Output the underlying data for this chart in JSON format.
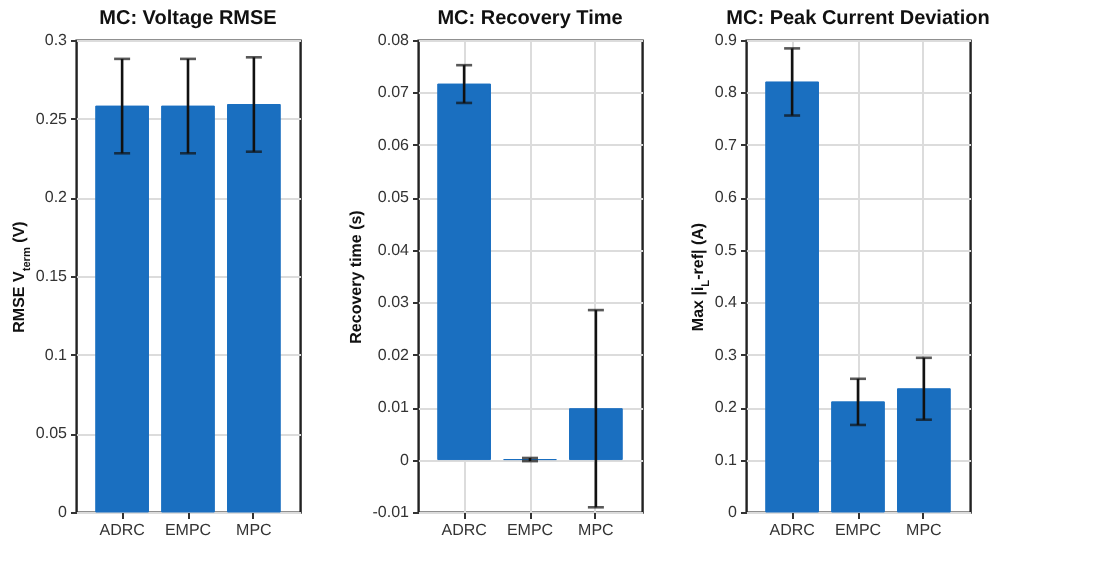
{
  "chart_data": [
    {
      "type": "bar",
      "title": "MC: Voltage RMSE",
      "ylabel": "RMSE  V$_{term}$ (V)",
      "categories": [
        "ADRC",
        "EMPC",
        "MPC"
      ],
      "values": [
        0.258,
        0.258,
        0.259
      ],
      "errors": [
        0.03,
        0.03,
        0.03
      ],
      "color": "#1a6fc0",
      "ylim": [
        0,
        0.3
      ],
      "yticks": [
        0,
        0.05,
        0.1,
        0.15,
        0.2,
        0.25,
        0.3
      ],
      "grid": "y"
    },
    {
      "type": "bar",
      "title": "MC: Recovery Time",
      "ylabel": "Recovery time (s)",
      "categories": [
        "ADRC",
        "EMPC",
        "MPC"
      ],
      "values": [
        0.0716,
        0,
        0.0097
      ],
      "errors": [
        0.0036,
        0.0003,
        0.0188
      ],
      "color": "#1a6fc0",
      "ylim": [
        -0.01,
        0.08
      ],
      "yticks": [
        -0.01,
        0,
        0.01,
        0.02,
        0.03,
        0.04,
        0.05,
        0.06,
        0.07,
        0.08
      ],
      "grid": true
    },
    {
      "type": "bar",
      "title": "MC: Peak Current Deviation",
      "ylabel": "Max  |i$_{L}$-ref|  (A)",
      "categories": [
        "ADRC",
        "EMPC",
        "MPC"
      ],
      "values": [
        0.82,
        0.21,
        0.235
      ],
      "errors": [
        0.064,
        0.044,
        0.059
      ],
      "color": "#1a6fc0",
      "ylim": [
        0,
        0.9
      ],
      "yticks": [
        0,
        0.1,
        0.2,
        0.3,
        0.4,
        0.5,
        0.6,
        0.7,
        0.8,
        0.9
      ],
      "grid": true
    }
  ]
}
